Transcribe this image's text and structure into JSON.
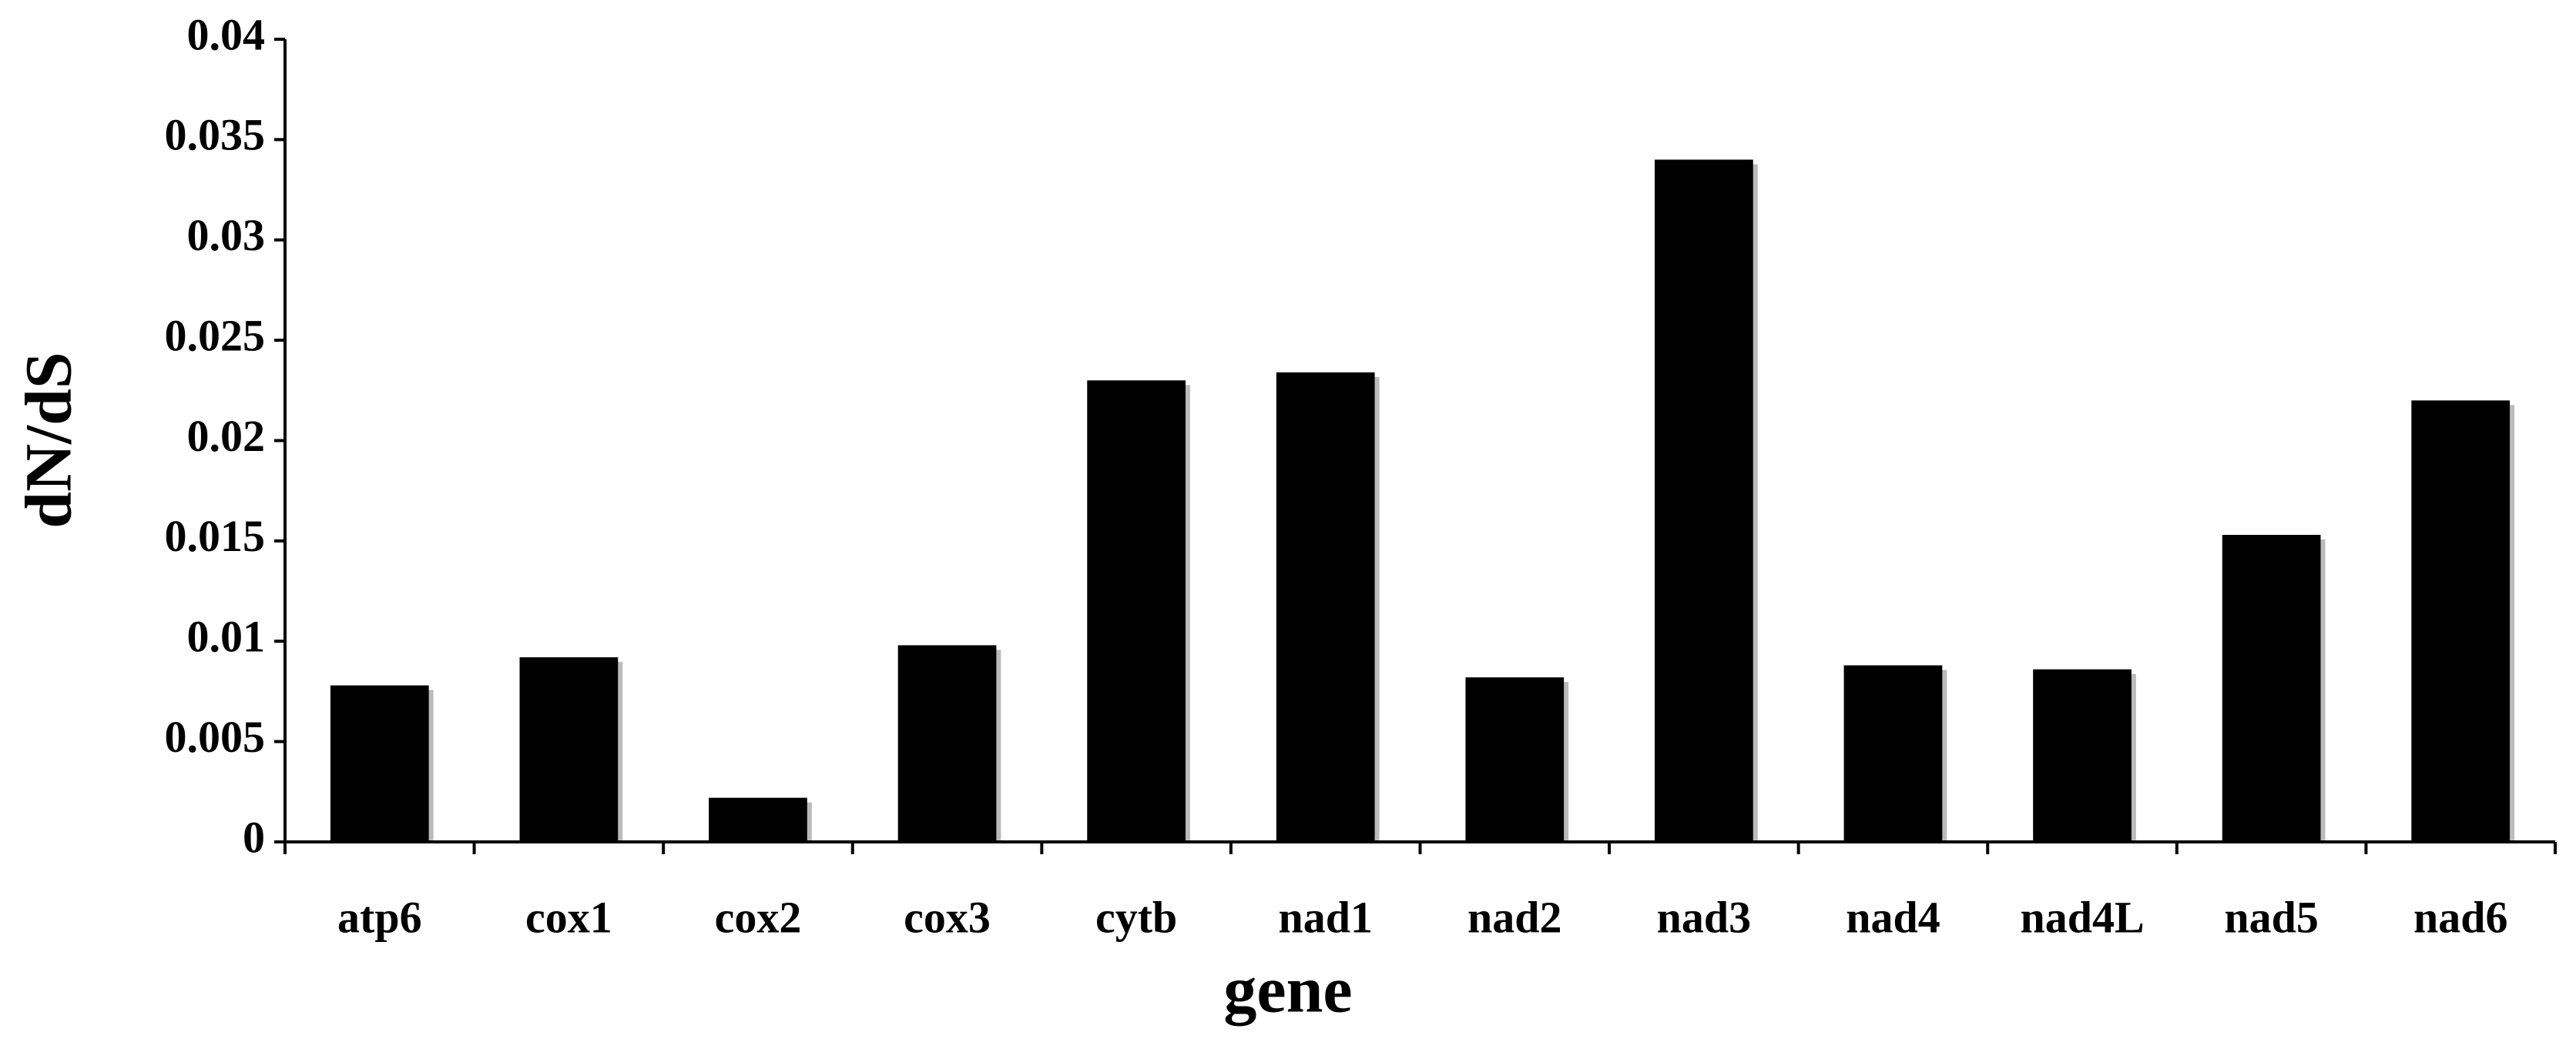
{
  "chart_data": {
    "type": "bar",
    "x_label": "gene",
    "y_label": "dN/dS",
    "categories": [
      "atp6",
      "cox1",
      "cox2",
      "cox3",
      "cytb",
      "nad1",
      "nad2",
      "nad3",
      "nad4",
      "nad4L",
      "nad5",
      "nad6"
    ],
    "values": [
      0.0078,
      0.0092,
      0.0022,
      0.0098,
      0.023,
      0.0234,
      0.0082,
      0.034,
      0.0088,
      0.0086,
      0.0153,
      0.022
    ],
    "color": "#000000",
    "ylim": [
      0,
      0.04
    ],
    "yticks": [
      0,
      0.005,
      0.01,
      0.015,
      0.02,
      0.025,
      0.03,
      0.035,
      0.04
    ],
    "grid": false
  }
}
